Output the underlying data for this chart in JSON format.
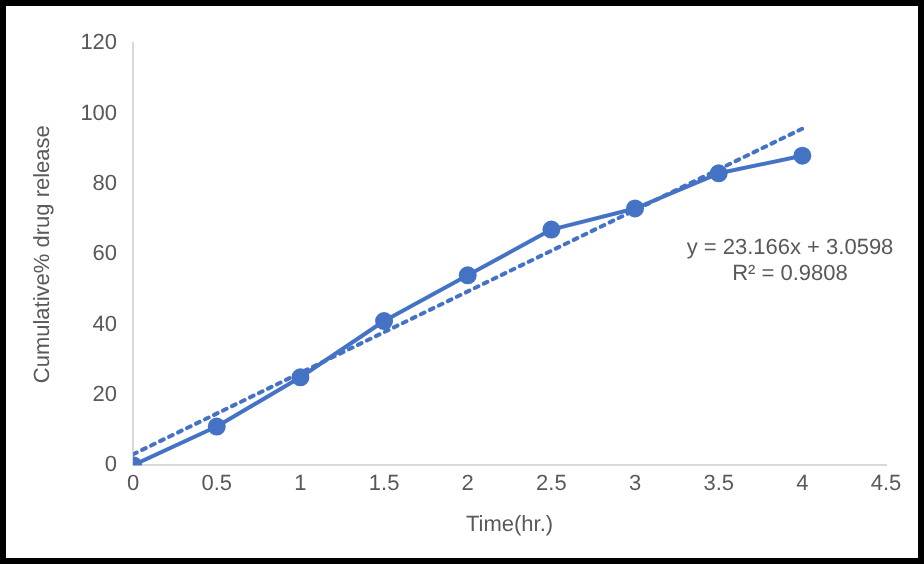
{
  "chart_data": {
    "type": "line",
    "xlabel": "Time(hr.)",
    "ylabel": "Cumulative% drug release",
    "x": [
      0,
      0.5,
      1,
      1.5,
      2,
      2.5,
      3,
      3.5,
      4
    ],
    "series": [
      {
        "color": "#4472c4",
        "values": [
          0,
          11,
          25,
          41,
          54,
          67,
          73,
          83,
          88
        ],
        "marker": "circle",
        "line_style": "solid"
      },
      {
        "type": "line",
        "color": "#4472c4",
        "x": [
          0,
          4
        ],
        "values": [
          3.1,
          95.7
        ],
        "marker": "none",
        "line_style": "dotted"
      }
    ],
    "xlim": [
      0,
      4.5
    ],
    "xticks": [
      0,
      0.5,
      1,
      1.5,
      2,
      2.5,
      3,
      3.5,
      4,
      4.5
    ],
    "ylim": [
      0,
      120
    ],
    "yticks": [
      0,
      20,
      40,
      60,
      80,
      100,
      120
    ],
    "grid": false,
    "legend": false,
    "annotations": [
      "y = 23.166x + 3.0598",
      "R² = 0.9808"
    ]
  }
}
